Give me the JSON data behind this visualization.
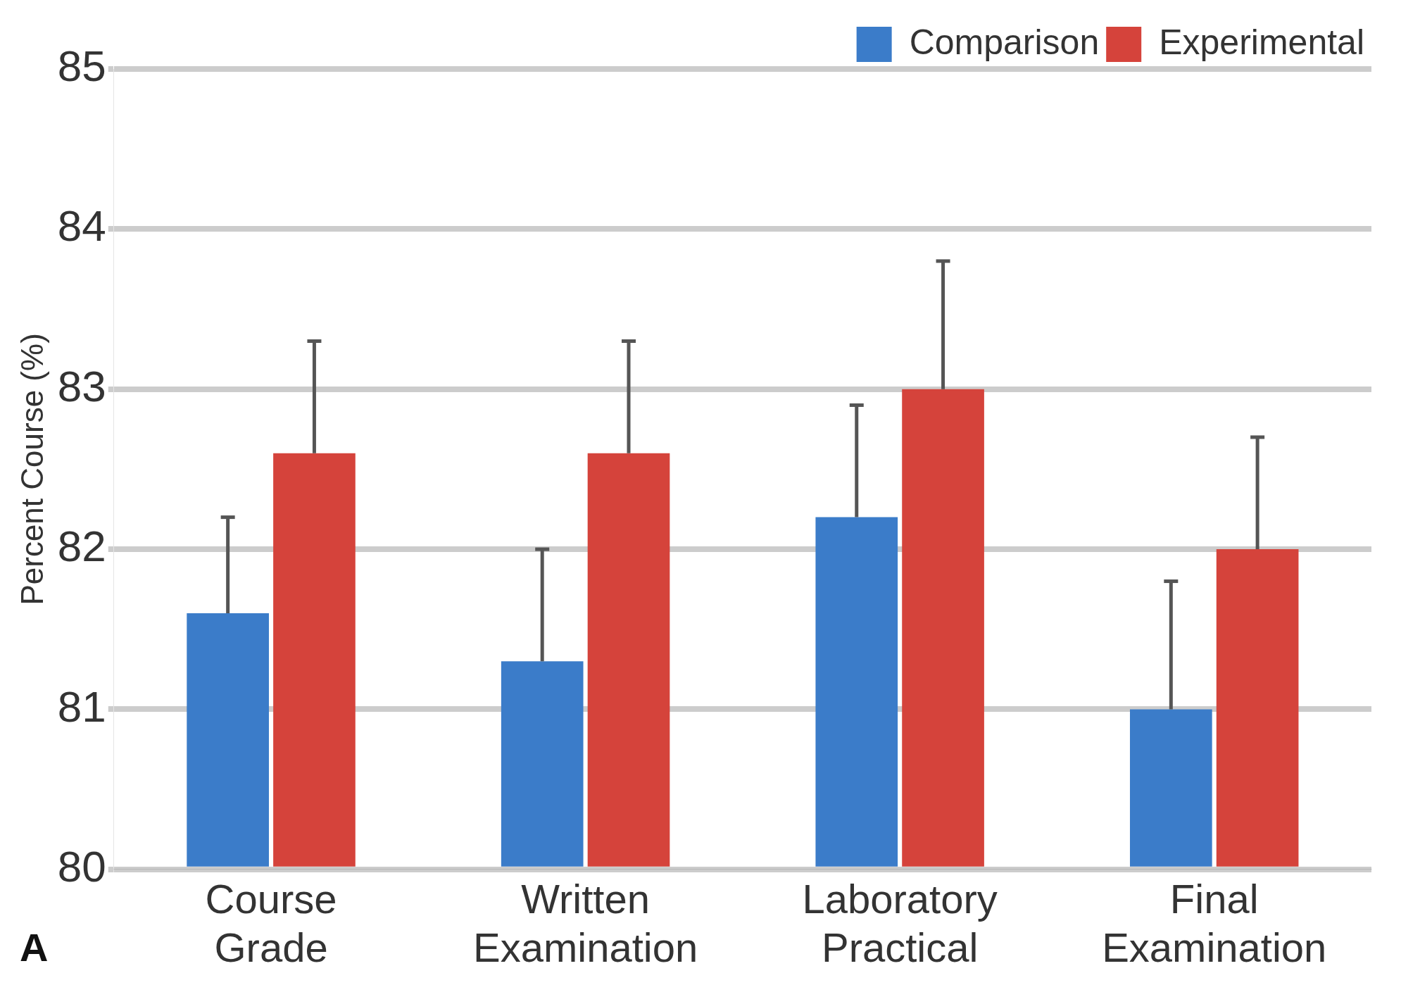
{
  "chart_data": {
    "type": "bar",
    "ylabel": "Percent Course (%)",
    "categories": [
      "Course Grade",
      "Written Examination",
      "Laboratory Practical",
      "Final Examination"
    ],
    "series": [
      {
        "name": "Comparison",
        "color": "#3b7cc9",
        "values": [
          81.6,
          81.3,
          82.2,
          81.0
        ],
        "errors": [
          [
            81.6,
            82.2
          ],
          [
            81.3,
            82.0
          ],
          [
            82.2,
            82.9
          ],
          [
            81.0,
            81.8
          ]
        ]
      },
      {
        "name": "Experimental",
        "color": "#d5433b",
        "values": [
          82.6,
          82.6,
          83.0,
          82.0
        ],
        "errors": [
          [
            82.6,
            83.3
          ],
          [
            82.6,
            83.3
          ],
          [
            83.0,
            83.8
          ],
          [
            82.0,
            82.7
          ]
        ]
      }
    ],
    "ylim": [
      80,
      85
    ],
    "yticks": [
      80,
      81,
      82,
      83,
      84,
      85
    ],
    "grid": "y",
    "legend": "top right",
    "annotations": [
      "A"
    ]
  }
}
